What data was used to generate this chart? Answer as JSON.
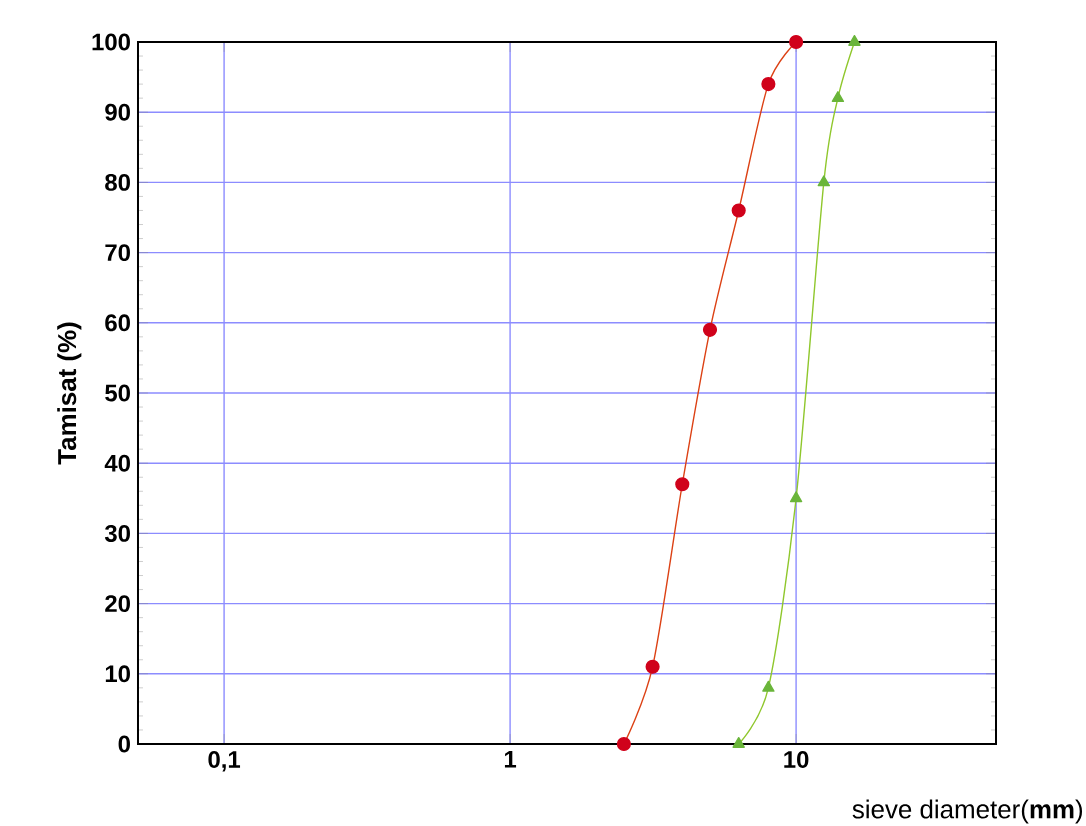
{
  "chart_data": {
    "type": "line",
    "xlabel": "sieve diameter(**mm**)",
    "ylabel": "Tamisat (%)",
    "log": "x",
    "grid": true,
    "xlim": [
      0.05,
      50
    ],
    "xticks": [
      {
        "value": 0.1,
        "label": "0,1"
      },
      1,
      10
    ],
    "ylim": [
      0,
      100
    ],
    "yticks": [
      0,
      10,
      20,
      30,
      40,
      50,
      60,
      70,
      80,
      90,
      100
    ],
    "series": [
      {
        "color": "#d0021b",
        "marker": "circle",
        "x": [
          2.5,
          3.15,
          4,
          5,
          6.3,
          8,
          10
        ],
        "values": [
          0,
          11,
          37,
          59,
          76,
          94,
          100
        ]
      },
      {
        "color": "#6ab53a",
        "marker": "triangle",
        "x": [
          6.3,
          8,
          10,
          12.5,
          14,
          16
        ],
        "values": [
          0,
          8,
          35,
          80,
          92,
          100
        ]
      }
    ]
  }
}
